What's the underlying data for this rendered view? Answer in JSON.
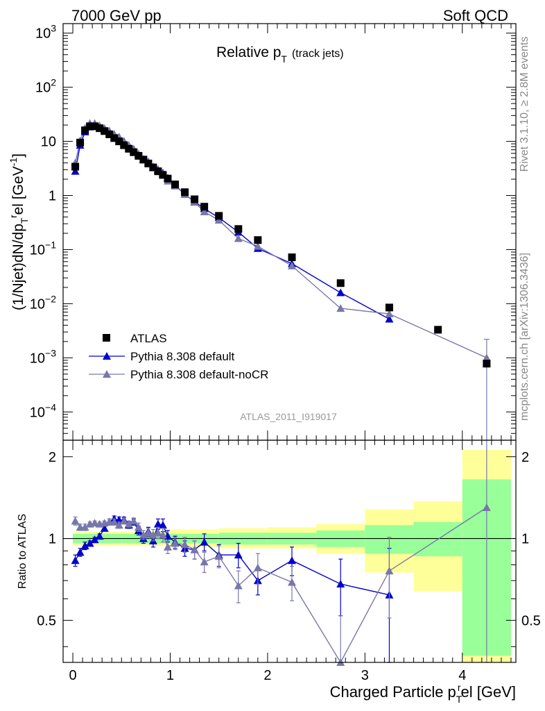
{
  "header": {
    "left": "7000 GeV pp",
    "right": "Soft QCD"
  },
  "side": {
    "top": "Rivet 3.1.10, ≥ 2.8M events",
    "bottom": "mcplots.cern.ch [arXiv:1306.3436]"
  },
  "analysis_label": "ATLAS_2011_I919017",
  "chart_data": [
    {
      "type": "scatter",
      "title": "Relative p_T (track jets)",
      "title_main": "Relative p",
      "title_sub": "T",
      "title_note": "(track jets)",
      "ylabel": "(1/Njet)dN/dp_T^rel [GeV^-1]",
      "xlim": [
        -0.1,
        4.55
      ],
      "ylim": [
        3e-05,
        1500
      ],
      "yscale": "log",
      "yticks": [
        {
          "v": 0.0001,
          "base": "10",
          "exp": "−4"
        },
        {
          "v": 0.001,
          "base": "10",
          "exp": "−3"
        },
        {
          "v": 0.01,
          "base": "10",
          "exp": "−2"
        },
        {
          "v": 0.1,
          "base": "10",
          "exp": "−1"
        },
        {
          "v": 1,
          "base": "1",
          "exp": ""
        },
        {
          "v": 10,
          "base": "10",
          "exp": ""
        },
        {
          "v": 100,
          "base": "10",
          "exp": "2"
        },
        {
          "v": 1000,
          "base": "10",
          "exp": "3"
        }
      ],
      "legend": [
        "ATLAS",
        "Pythia 8.308 default",
        "Pythia 8.308 default-noCR"
      ],
      "legend_position": "bottom-left",
      "colors": {
        "data": "#000000",
        "default": "#0000cc",
        "nocr": "#7777aa"
      },
      "series": [
        {
          "name": "ATLAS",
          "x": [
            0.025,
            0.075,
            0.125,
            0.175,
            0.225,
            0.275,
            0.325,
            0.375,
            0.425,
            0.475,
            0.525,
            0.575,
            0.625,
            0.675,
            0.725,
            0.775,
            0.825,
            0.875,
            0.925,
            0.975,
            1.05,
            1.15,
            1.25,
            1.35,
            1.5,
            1.7,
            1.9,
            2.25,
            2.75,
            3.25,
            3.75,
            4.25
          ],
          "y": [
            3.4,
            9.5,
            16,
            19,
            19,
            17.5,
            15.5,
            13.5,
            11.5,
            10,
            8.5,
            7.3,
            6.3,
            5.4,
            4.6,
            3.9,
            3.3,
            2.8,
            2.4,
            2.05,
            1.6,
            1.15,
            0.85,
            0.62,
            0.42,
            0.24,
            0.15,
            0.072,
            0.024,
            0.0085,
            0.0033,
            0.00078
          ]
        },
        {
          "name": "Pythia 8.308 default",
          "x": [
            0.025,
            0.075,
            0.125,
            0.175,
            0.225,
            0.275,
            0.325,
            0.375,
            0.425,
            0.475,
            0.525,
            0.575,
            0.625,
            0.675,
            0.725,
            0.775,
            0.825,
            0.875,
            0.925,
            0.975,
            1.05,
            1.15,
            1.25,
            1.35,
            1.5,
            1.7,
            1.9,
            2.25,
            2.75,
            3.25
          ],
          "y": [
            2.8,
            8.5,
            15,
            18.5,
            19.5,
            18.5,
            16.5,
            15.5,
            13.5,
            12,
            10,
            8.2,
            7.2,
            5.8,
            4.6,
            4.2,
            3.4,
            3.0,
            2.6,
            2.1,
            1.55,
            1.05,
            0.77,
            0.57,
            0.39,
            0.21,
            0.105,
            0.055,
            0.016,
            0.0052
          ]
        },
        {
          "name": "Pythia 8.308 default-noCR",
          "x": [
            0.025,
            0.075,
            0.125,
            0.175,
            0.225,
            0.275,
            0.325,
            0.375,
            0.425,
            0.475,
            0.525,
            0.575,
            0.625,
            0.675,
            0.725,
            0.775,
            0.825,
            0.875,
            0.925,
            0.975,
            1.05,
            1.15,
            1.25,
            1.35,
            1.5,
            1.7,
            1.9,
            2.25,
            2.75,
            3.25,
            4.25
          ],
          "y": [
            4.0,
            10.3,
            17.5,
            21.5,
            21.5,
            19.5,
            17.5,
            15.5,
            13.5,
            12,
            9.8,
            8.5,
            7.2,
            5.9,
            4.7,
            4.1,
            3.4,
            2.9,
            2.5,
            1.85,
            1.5,
            1.05,
            0.75,
            0.5,
            0.35,
            0.16,
            0.115,
            0.05,
            0.0082,
            0.0065,
            0.001
          ]
        }
      ]
    },
    {
      "type": "scatter",
      "title": "",
      "ylabel": "Ratio to ATLAS",
      "xlabel": "Charged Particle p_T^rel [GeV]",
      "xlabel_main": "Charged Particle p",
      "xlabel_sub": "T",
      "xlabel_sup": "r",
      "xlabel_tail": "el [GeV]",
      "xlim": [
        -0.1,
        4.55
      ],
      "ylim": [
        0.35,
        2.3
      ],
      "yscale": "log",
      "yticks": [
        0.5,
        1,
        2
      ],
      "xticks": [
        0,
        1,
        2,
        3,
        4
      ],
      "reference_line": 1,
      "bands": [
        {
          "x0": 0.0,
          "x1": 0.5,
          "inner": [
            0.96,
            1.04
          ],
          "outer": [
            0.94,
            1.06
          ]
        },
        {
          "x0": 0.5,
          "x1": 1.0,
          "inner": [
            0.96,
            1.04
          ],
          "outer": [
            0.94,
            1.06
          ]
        },
        {
          "x0": 1.0,
          "x1": 1.5,
          "inner": [
            0.96,
            1.04
          ],
          "outer": [
            0.93,
            1.08
          ]
        },
        {
          "x0": 1.5,
          "x1": 2.0,
          "inner": [
            0.95,
            1.05
          ],
          "outer": [
            0.92,
            1.09
          ]
        },
        {
          "x0": 2.0,
          "x1": 2.5,
          "inner": [
            0.95,
            1.05
          ],
          "outer": [
            0.92,
            1.1
          ]
        },
        {
          "x0": 2.5,
          "x1": 3.0,
          "inner": [
            0.93,
            1.07
          ],
          "outer": [
            0.88,
            1.13
          ]
        },
        {
          "x0": 3.0,
          "x1": 3.5,
          "inner": [
            0.88,
            1.12
          ],
          "outer": [
            0.75,
            1.28
          ]
        },
        {
          "x0": 3.5,
          "x1": 4.0,
          "inner": [
            0.86,
            1.15
          ],
          "outer": [
            0.64,
            1.37
          ]
        },
        {
          "x0": 4.0,
          "x1": 4.5,
          "inner": [
            0.37,
            1.65
          ],
          "outer": [
            0.35,
            2.12
          ]
        }
      ],
      "series": [
        {
          "name": "Pythia 8.308 default",
          "x": [
            0.025,
            0.075,
            0.125,
            0.175,
            0.225,
            0.275,
            0.325,
            0.375,
            0.425,
            0.475,
            0.525,
            0.575,
            0.625,
            0.675,
            0.725,
            0.775,
            0.825,
            0.875,
            0.925,
            0.975,
            1.05,
            1.15,
            1.25,
            1.35,
            1.5,
            1.7,
            1.9,
            2.25,
            2.75,
            3.25
          ],
          "y": [
            0.83,
            0.89,
            0.94,
            0.96,
            0.99,
            1.02,
            1.09,
            1.15,
            1.18,
            1.17,
            1.17,
            1.12,
            1.15,
            1.07,
            1.0,
            1.06,
            0.98,
            1.13,
            1.12,
            1.02,
            0.97,
            0.92,
            0.91,
            0.97,
            0.87,
            0.87,
            0.7,
            0.83,
            0.68,
            0.62
          ],
          "err": [
            0.04,
            0.03,
            0.03,
            0.02,
            0.02,
            0.02,
            0.02,
            0.03,
            0.03,
            0.03,
            0.03,
            0.03,
            0.03,
            0.04,
            0.04,
            0.04,
            0.05,
            0.05,
            0.06,
            0.05,
            0.05,
            0.06,
            0.07,
            0.07,
            0.08,
            0.09,
            0.08,
            0.1,
            0.16,
            0.3
          ]
        },
        {
          "name": "Pythia 8.308 default-noCR",
          "x": [
            0.025,
            0.075,
            0.125,
            0.175,
            0.225,
            0.275,
            0.325,
            0.375,
            0.425,
            0.475,
            0.525,
            0.575,
            0.625,
            0.675,
            0.725,
            0.775,
            0.825,
            0.875,
            0.925,
            0.975,
            1.05,
            1.15,
            1.25,
            1.35,
            1.5,
            1.7,
            1.9,
            2.25,
            2.75,
            3.25,
            4.25
          ],
          "y": [
            1.16,
            1.1,
            1.1,
            1.13,
            1.14,
            1.13,
            1.14,
            1.15,
            1.15,
            1.12,
            1.16,
            1.13,
            1.16,
            1.1,
            1.03,
            1.05,
            1.03,
            1.05,
            1.03,
            0.93,
            0.96,
            0.95,
            0.91,
            0.82,
            0.86,
            0.67,
            0.78,
            0.69,
            0.34,
            0.76,
            1.3
          ],
          "err": [
            0.04,
            0.03,
            0.03,
            0.02,
            0.02,
            0.02,
            0.02,
            0.03,
            0.03,
            0.03,
            0.03,
            0.03,
            0.03,
            0.04,
            0.04,
            0.04,
            0.05,
            0.05,
            0.06,
            0.05,
            0.05,
            0.06,
            0.07,
            0.07,
            0.08,
            0.09,
            0.1,
            0.1,
            0.18,
            0.25,
            1.0
          ]
        }
      ]
    }
  ]
}
